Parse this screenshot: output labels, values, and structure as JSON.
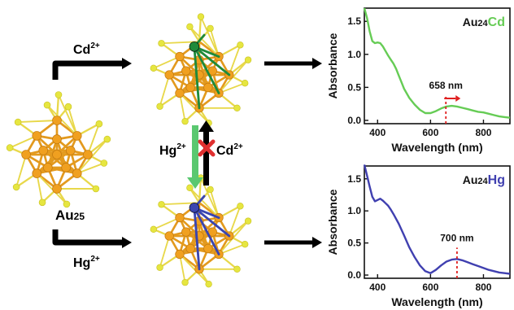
{
  "labels": {
    "cd_top": "Cd",
    "cd_top_sup": "2+",
    "hg_bottom": "Hg",
    "hg_bottom_sup": "2+",
    "hg_mid": "Hg",
    "hg_mid_sup": "2+",
    "cd_mid": "Cd",
    "cd_mid_sup": "2+",
    "au25": "Au",
    "au25_sub": "25"
  },
  "colors": {
    "au_atom": "#f0a020",
    "s_atom": "#e6e640",
    "bond": "#e39a1e",
    "cd_atom": "#1f8a3a",
    "hg_atom": "#3a45b0",
    "green_curve": "#66cc55",
    "blue_curve": "#4040b0",
    "marker": "#e02020",
    "green_arrow": "#5ac870",
    "cross": "#e03030"
  },
  "chart_data": [
    {
      "type": "line",
      "title_parts": [
        "Au",
        "24",
        "Cd"
      ],
      "xlabel": "Wavelength (nm)",
      "ylabel": "Absorbance",
      "xlim": [
        350,
        900
      ],
      "ylim": [
        -0.05,
        1.7
      ],
      "xticks": [
        400,
        600,
        800
      ],
      "yticks": [
        0.0,
        0.5,
        1.0,
        1.5
      ],
      "ytick_labels": [
        "0.0",
        "0.5",
        "1.0",
        "1.5"
      ],
      "annotation": "658 nm",
      "marker_x": 658,
      "series": [
        {
          "x": [
            350,
            360,
            370,
            380,
            390,
            400,
            410,
            420,
            430,
            440,
            450,
            460,
            470,
            480,
            490,
            500,
            520,
            540,
            560,
            580,
            600,
            620,
            640,
            660,
            680,
            700,
            720,
            740,
            760,
            780,
            800,
            820,
            840,
            860,
            880,
            900
          ],
          "y": [
            1.7,
            1.55,
            1.35,
            1.2,
            1.17,
            1.18,
            1.17,
            1.12,
            1.05,
            0.98,
            0.92,
            0.86,
            0.78,
            0.68,
            0.58,
            0.48,
            0.34,
            0.24,
            0.16,
            0.11,
            0.11,
            0.14,
            0.18,
            0.21,
            0.22,
            0.21,
            0.19,
            0.17,
            0.15,
            0.13,
            0.12,
            0.1,
            0.08,
            0.06,
            0.05,
            0.04
          ]
        }
      ]
    },
    {
      "type": "line",
      "title_parts": [
        "Au",
        "24",
        "Hg"
      ],
      "xlabel": "Wavelength (nm)",
      "ylabel": "Absorbance",
      "xlim": [
        350,
        900
      ],
      "ylim": [
        -0.05,
        1.7
      ],
      "xticks": [
        400,
        600,
        800
      ],
      "yticks": [
        0.0,
        0.5,
        1.0,
        1.5
      ],
      "ytick_labels": [
        "0.0",
        "0.5",
        "1.0",
        "1.5"
      ],
      "annotation": "700 nm",
      "marker_x": 700,
      "series": [
        {
          "x": [
            350,
            360,
            370,
            380,
            390,
            400,
            410,
            420,
            430,
            440,
            450,
            460,
            480,
            500,
            520,
            540,
            560,
            580,
            600,
            620,
            640,
            660,
            680,
            700,
            720,
            740,
            760,
            780,
            800,
            820,
            840,
            860,
            880,
            900
          ],
          "y": [
            1.72,
            1.55,
            1.38,
            1.22,
            1.15,
            1.17,
            1.19,
            1.16,
            1.12,
            1.08,
            1.02,
            0.95,
            0.8,
            0.62,
            0.43,
            0.28,
            0.15,
            0.06,
            0.03,
            0.08,
            0.15,
            0.21,
            0.24,
            0.25,
            0.23,
            0.2,
            0.17,
            0.14,
            0.11,
            0.08,
            0.06,
            0.04,
            0.03,
            0.02
          ]
        }
      ]
    }
  ]
}
